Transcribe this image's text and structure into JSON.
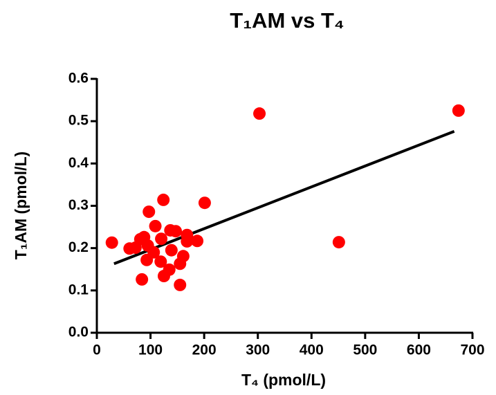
{
  "chart_data": {
    "type": "scatter",
    "title": "T₁AM vs T₄",
    "x_label": "T₄ (pmol/L)",
    "y_label": "T₁AM (pmol/L)",
    "x": [
      28,
      61,
      72,
      81,
      84,
      88,
      93,
      95,
      97,
      106,
      109,
      119,
      120,
      124,
      125,
      135,
      137,
      139,
      147,
      155,
      155,
      161,
      168,
      168,
      187,
      201,
      303,
      451,
      674
    ],
    "values": [
      0.213,
      0.199,
      0.201,
      0.221,
      0.126,
      0.226,
      0.172,
      0.206,
      0.286,
      0.19,
      0.252,
      0.168,
      0.222,
      0.314,
      0.134,
      0.149,
      0.242,
      0.195,
      0.24,
      0.113,
      0.163,
      0.181,
      0.231,
      0.216,
      0.217,
      0.307,
      0.518,
      0.214,
      0.525
    ],
    "color": "#ff0000",
    "fit_line": {
      "x": [
        32,
        666
      ],
      "y": [
        0.163,
        0.476
      ],
      "color": "#000000"
    },
    "xlim": [
      0,
      700
    ],
    "xticks": [
      0,
      100,
      200,
      300,
      400,
      500,
      600,
      700
    ],
    "ylim": [
      0,
      0.6
    ],
    "yticks": [
      {
        "value": 0,
        "label": "0.0"
      },
      0.1,
      0.2,
      0.3,
      0.4,
      0.5,
      0.6
    ]
  }
}
